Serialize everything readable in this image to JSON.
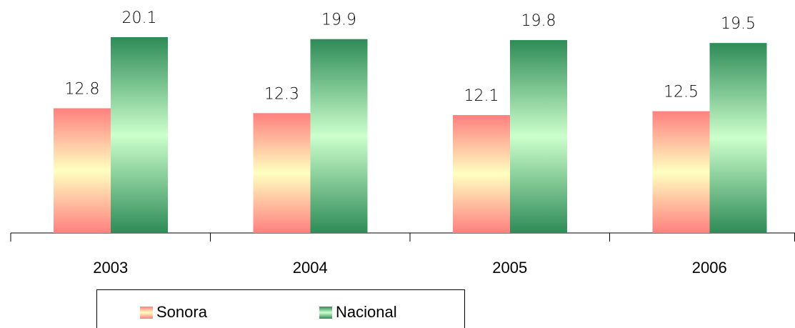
{
  "chart_data": {
    "type": "bar",
    "categories": [
      "2003",
      "2004",
      "2005",
      "2006"
    ],
    "series": [
      {
        "name": "Sonora",
        "color": "#ff8080",
        "values": [
          12.8,
          12.3,
          12.1,
          12.5
        ]
      },
      {
        "name": "Nacional",
        "color": "#2e8b57",
        "values": [
          20.1,
          19.9,
          19.8,
          19.5
        ]
      }
    ]
  }
}
